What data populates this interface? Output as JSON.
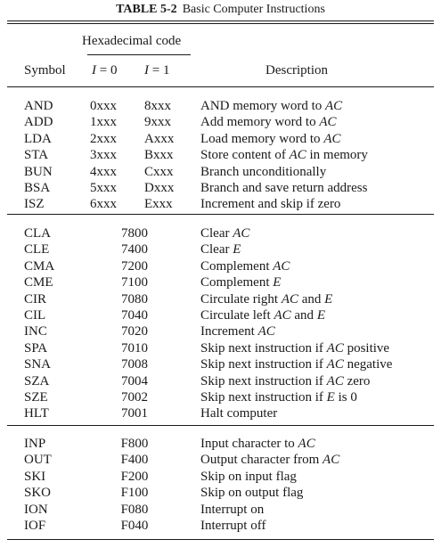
{
  "caption": {
    "number": "TABLE 5-2",
    "title": "Basic Computer Instructions"
  },
  "header": {
    "hex_code": "Hexadecimal code",
    "symbol": "Symbol",
    "i0_var": "I",
    "i0_rest": " = 0",
    "i1_var": "I",
    "i1_rest": " = 1",
    "description": "Description"
  },
  "groups": [
    {
      "rows": [
        {
          "symbol": "AND",
          "i0": "0xxx",
          "i1": "8xxx",
          "desc": "AND memory word to *AC*"
        },
        {
          "symbol": "ADD",
          "i0": "1xxx",
          "i1": "9xxx",
          "desc": "Add memory word to *AC*"
        },
        {
          "symbol": "LDA",
          "i0": "2xxx",
          "i1": "Axxx",
          "desc": "Load memory word to *AC*"
        },
        {
          "symbol": "STA",
          "i0": "3xxx",
          "i1": "Bxxx",
          "desc": "Store content of *AC* in memory"
        },
        {
          "symbol": "BUN",
          "i0": "4xxx",
          "i1": "Cxxx",
          "desc": "Branch unconditionally"
        },
        {
          "symbol": "BSA",
          "i0": "5xxx",
          "i1": "Dxxx",
          "desc": "Branch and save return address"
        },
        {
          "symbol": "ISZ",
          "i0": "6xxx",
          "i1": "Exxx",
          "desc": "Increment and skip if zero"
        }
      ]
    },
    {
      "rows": [
        {
          "symbol": "CLA",
          "code": "7800",
          "desc": "Clear *AC*"
        },
        {
          "symbol": "CLE",
          "code": "7400",
          "desc": "Clear *E*"
        },
        {
          "symbol": "CMA",
          "code": "7200",
          "desc": "Complement *AC*"
        },
        {
          "symbol": "CME",
          "code": "7100",
          "desc": "Complement *E*"
        },
        {
          "symbol": "CIR",
          "code": "7080",
          "desc": "Circulate right *AC* and *E*"
        },
        {
          "symbol": "CIL",
          "code": "7040",
          "desc": "Circulate left *AC* and *E*"
        },
        {
          "symbol": "INC",
          "code": "7020",
          "desc": "Increment *AC*"
        },
        {
          "symbol": "SPA",
          "code": "7010",
          "desc": "Skip next instruction if *AC* positive"
        },
        {
          "symbol": "SNA",
          "code": "7008",
          "desc": "Skip next instruction if *AC* negative"
        },
        {
          "symbol": "SZA",
          "code": "7004",
          "desc": "Skip next instruction if *AC* zero"
        },
        {
          "symbol": "SZE",
          "code": "7002",
          "desc": "Skip next instruction if *E* is 0"
        },
        {
          "symbol": "HLT",
          "code": "7001",
          "desc": "Halt computer"
        }
      ]
    },
    {
      "rows": [
        {
          "symbol": "INP",
          "code": "F800",
          "desc": "Input character to *AC*"
        },
        {
          "symbol": "OUT",
          "code": "F400",
          "desc": "Output character from *AC*"
        },
        {
          "symbol": "SKI",
          "code": "F200",
          "desc": "Skip on input flag"
        },
        {
          "symbol": "SKO",
          "code": "F100",
          "desc": "Skip on output flag"
        },
        {
          "symbol": "ION",
          "code": "F080",
          "desc": "Interrupt on"
        },
        {
          "symbol": "IOF",
          "code": "F040",
          "desc": "Interrupt off"
        }
      ]
    }
  ]
}
